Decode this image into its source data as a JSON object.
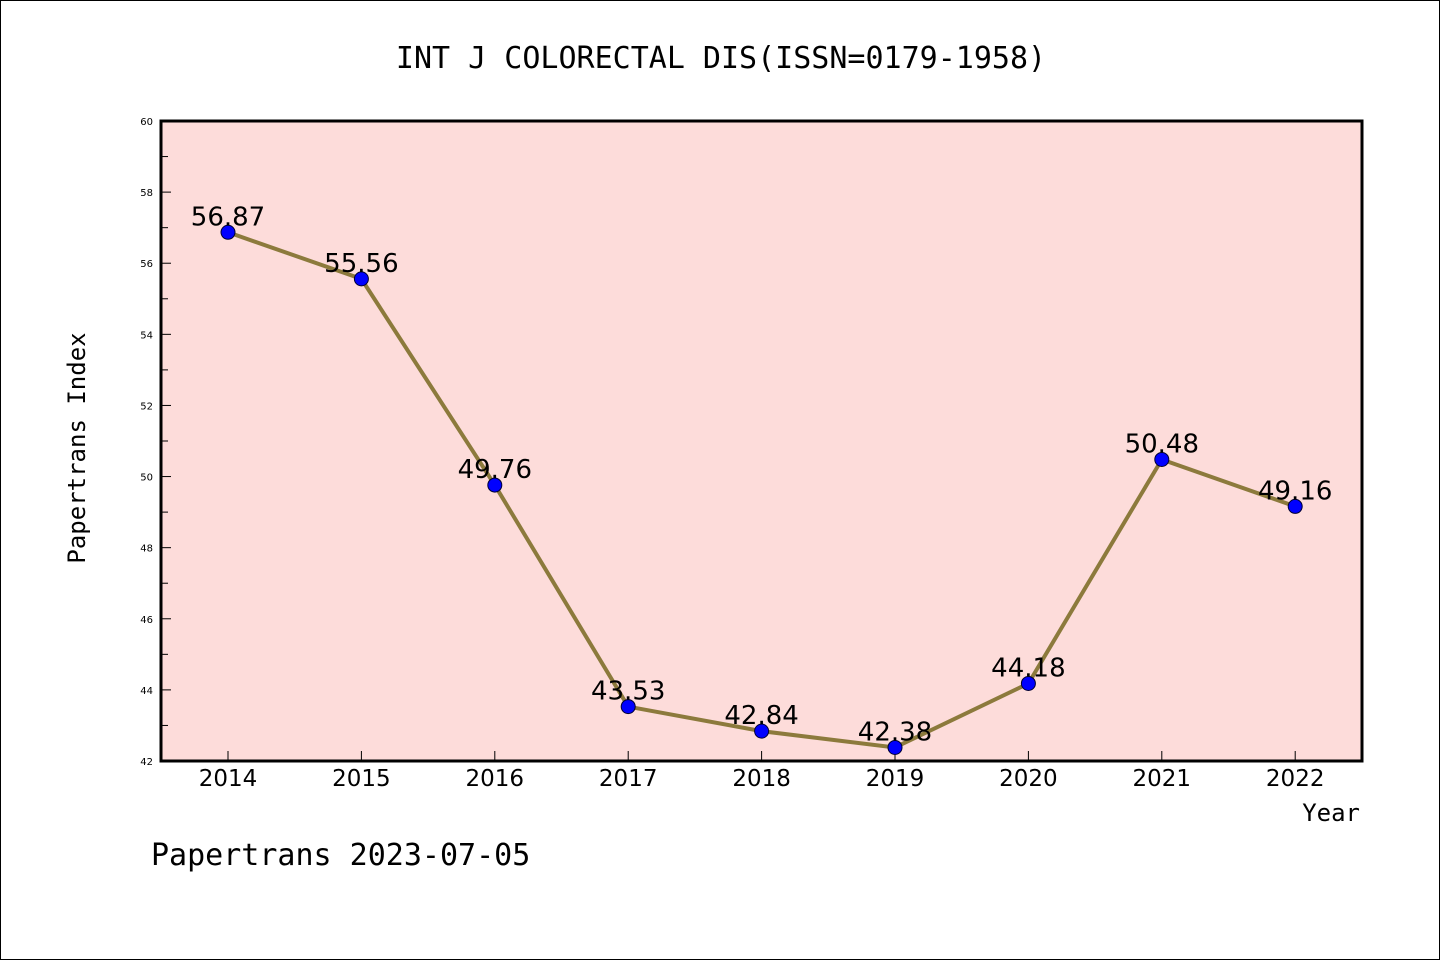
{
  "chart_data": {
    "type": "line",
    "title": "INT J COLORECTAL DIS(ISSN=0179-1958)",
    "xlabel": "Year",
    "ylabel": "Papertrans Index",
    "categories": [
      "2014",
      "2015",
      "2016",
      "2017",
      "2018",
      "2019",
      "2020",
      "2021",
      "2022"
    ],
    "series": [
      {
        "values": [
          56.87,
          55.56,
          49.76,
          43.53,
          42.84,
          42.38,
          44.18,
          50.48,
          49.16
        ],
        "data_labels": [
          "56.87",
          "55.56",
          "49.76",
          "43.53",
          "42.84",
          "42.38",
          "44.18",
          "50.48",
          "49.16"
        ]
      }
    ],
    "ylim": [
      42,
      60
    ],
    "yticks": [
      42,
      44,
      46,
      48,
      50,
      52,
      54,
      56,
      58,
      60
    ],
    "ytick_labels": [
      "42",
      "44",
      "46",
      "48",
      "50",
      "52",
      "54",
      "56",
      "58",
      "60"
    ],
    "grid": false,
    "legend": "none"
  },
  "footer_text": "Papertrans 2023-07-05",
  "colors": {
    "plot_background": "#fddcda",
    "line": "#8c7a3c",
    "marker": "#0000ff",
    "axis": "#000000"
  }
}
